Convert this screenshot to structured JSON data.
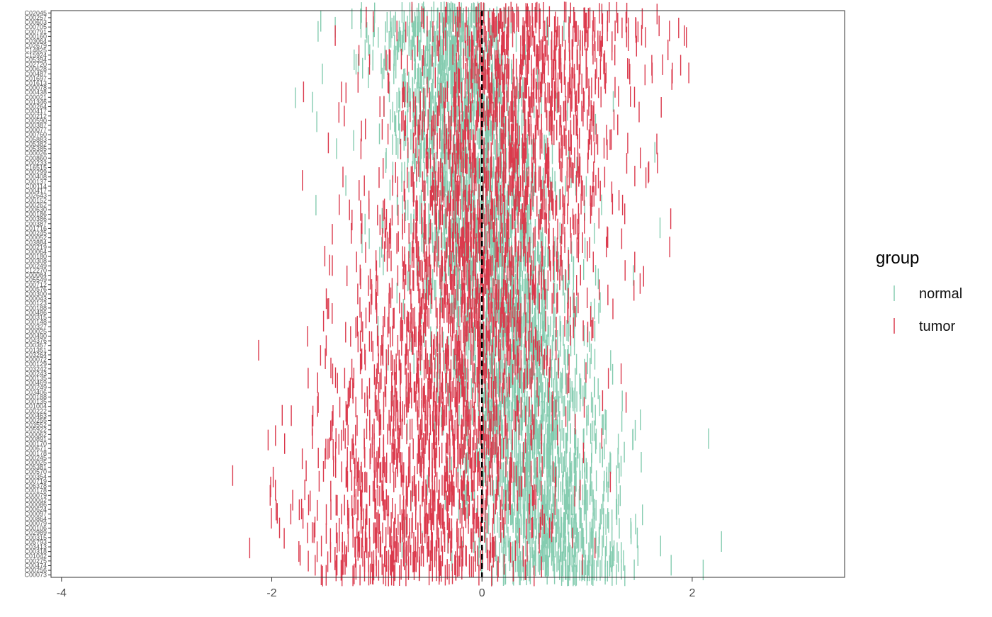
{
  "chart_data": {
    "type": "scatter",
    "mark": "vertical-tick",
    "title": "",
    "xlabel": "",
    "ylabel": "",
    "xlim": [
      -4.1,
      3.45
    ],
    "x_ticks": [
      -4,
      -2,
      0,
      2
    ],
    "x_tick_labels": [
      "-4",
      "-2",
      "0",
      "2"
    ],
    "reference_line": {
      "x": 0,
      "style": "dashed",
      "color": "#000000"
    },
    "grid": false,
    "legend": {
      "title": "group",
      "placement": "right",
      "entries": [
        {
          "name": "normal",
          "color": "#85CCB0"
        },
        {
          "name": "tumor",
          "color": "#DB3A4D"
        }
      ]
    },
    "series": [
      {
        "name": "normal",
        "color": "#85CCB0",
        "center_top": -0.4,
        "center_bottom": 0.75,
        "spread": 0.35,
        "points_per_row": 26
      },
      {
        "name": "tumor",
        "color": "#DB3A4D",
        "center_top": 0.55,
        "center_bottom": -0.75,
        "spread": 0.55,
        "points_per_row": 26
      }
    ],
    "categories": [
      "C02045",
      "C00257",
      "C00603",
      "C00705",
      "C00791",
      "C00160",
      "C03064",
      "C02679",
      "C14825",
      "C15924",
      "C05394",
      "C02720",
      "C00628",
      "C00487",
      "C01697",
      "C01613",
      "C00078",
      "C00438",
      "C00021",
      "C01346",
      "C00264",
      "C00417",
      "C00212",
      "C00590",
      "C00387",
      "C00077",
      "C00760",
      "C05883",
      "C05382",
      "C05385",
      "C00026",
      "C00860",
      "C00233",
      "C16515",
      "C00299",
      "C00408",
      "C00137",
      "C00114",
      "C00417",
      "C02643",
      "C00152",
      "C00262",
      "C00630",
      "C00186",
      "C00386",
      "C00387",
      "C01716",
      "C00245",
      "C00052",
      "C03884",
      "C00219",
      "C00064",
      "C00180",
      "C00308",
      "C00249",
      "C12270",
      "C00084",
      "C05549",
      "C00712",
      "C00576",
      "C00300",
      "C00043",
      "C00123",
      "C00188",
      "C00486",
      "C00315",
      "C00148",
      "C00327",
      "C00025",
      "C00490",
      "C04376",
      "C00357",
      "C01351",
      "C03264",
      "C00072",
      "C00129",
      "C03242",
      "C00243",
      "C00135",
      "C00469",
      "C00249",
      "C03406",
      "C00188",
      "C00135",
      "C01004",
      "C00222",
      "C00463",
      "C00255",
      "C03552",
      "C05922",
      "C00062",
      "C00891",
      "C00170",
      "C00671",
      "C00178",
      "C00245",
      "C00025",
      "C05381",
      "C00570",
      "C00354",
      "C00719",
      "C06378",
      "C00178",
      "C00079",
      "C00042",
      "C00086",
      "C00624",
      "C00097",
      "C00864",
      "C00079",
      "C00106",
      "C02989",
      "C00315",
      "C05793",
      "C03413",
      "C00318",
      "C01042",
      "C00275",
      "C00474",
      "C00256",
      "C00073"
    ]
  }
}
